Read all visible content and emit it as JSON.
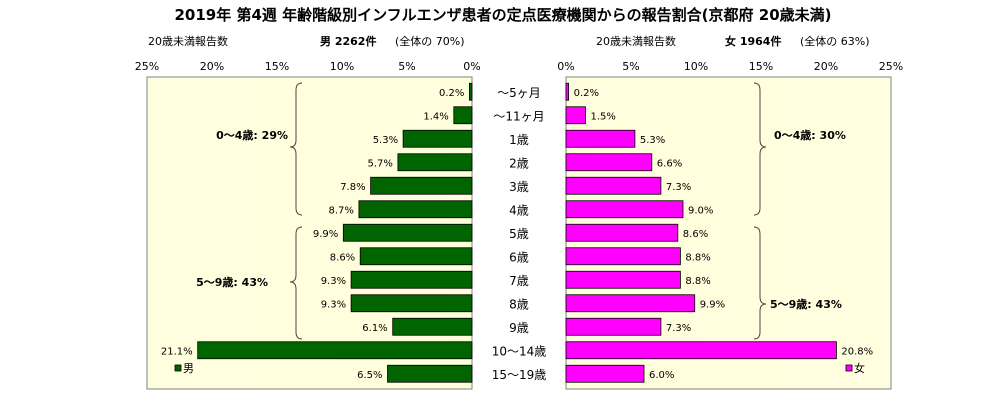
{
  "chart_data": {
    "type": "bar",
    "title": "2019年 第4週 年齢階級別インフルエンザ患者の定点医療機関からの報告割合(京都府 20歳未満)",
    "categories": [
      "〜5ヶ月",
      "〜11ヶ月",
      "1歳",
      "2歳",
      "3歳",
      "4歳",
      "5歳",
      "6歳",
      "7歳",
      "8歳",
      "9歳",
      "10〜14歳",
      "15〜19歳"
    ],
    "xlim": [
      0,
      25
    ],
    "ticks": [
      "25%",
      "20%",
      "15%",
      "10%",
      "5%",
      "0%"
    ],
    "ticks_right": [
      "0%",
      "5%",
      "10%",
      "15%",
      "20%",
      "25%"
    ],
    "male": {
      "name": "男",
      "axis_label": "20歳未満報告数",
      "summary_label": "男 2262件",
      "summary_share": "(全体の 70%)",
      "values": [
        0.2,
        1.4,
        5.3,
        5.7,
        7.8,
        8.7,
        9.9,
        8.6,
        9.3,
        9.3,
        6.1,
        21.1,
        6.5
      ],
      "labels": [
        "0.2%",
        "1.4%",
        "5.3%",
        "5.7%",
        "7.8%",
        "8.7%",
        "9.9%",
        "8.6%",
        "9.3%",
        "9.3%",
        "6.1%",
        "21.1%",
        "6.5%"
      ],
      "color": "#006400",
      "group_labels": [
        "0〜4歳: 29%",
        "5〜9歳: 43%"
      ]
    },
    "female": {
      "name": "女",
      "axis_label": "20歳未満報告数",
      "summary_label": "女 1964件",
      "summary_share": "(全体の 63%)",
      "values": [
        0.2,
        1.5,
        5.3,
        6.6,
        7.3,
        9.0,
        8.6,
        8.8,
        8.8,
        9.9,
        7.3,
        20.8,
        6.0
      ],
      "labels": [
        "0.2%",
        "1.5%",
        "5.3%",
        "6.6%",
        "7.3%",
        "9.0%",
        "8.6%",
        "8.8%",
        "8.8%",
        "9.9%",
        "7.3%",
        "20.8%",
        "6.0%"
      ],
      "color": "#ff00ff",
      "group_labels": [
        "0〜4歳: 30%",
        "5〜9歳: 43%"
      ]
    },
    "colors": {
      "panel_bg": "#ffffe0",
      "bar_stroke": "#000000"
    }
  }
}
